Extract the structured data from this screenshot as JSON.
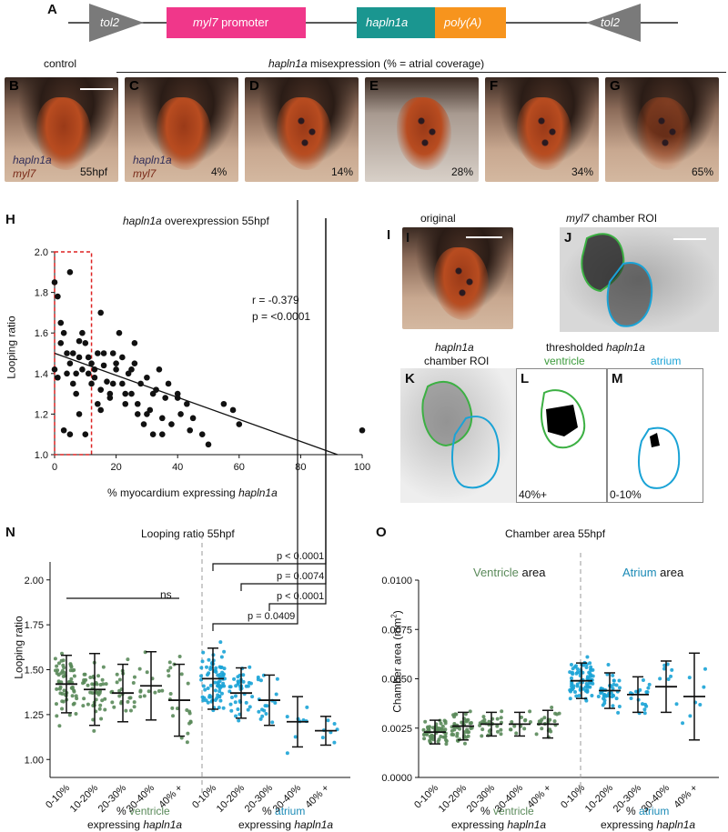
{
  "panels": {
    "A": "A",
    "B": "B",
    "C": "C",
    "D": "D",
    "E": "E",
    "F": "F",
    "G": "G",
    "H": "H",
    "I": "I",
    "J": "J",
    "K": "K",
    "L": "L",
    "M": "M",
    "N": "N",
    "O": "O"
  },
  "construct": {
    "tol2_left": "tol2",
    "promoter": "myl7",
    "promoter_suffix": " promoter",
    "gene": "hapln1a",
    "polya": "poly(A)",
    "tol2_right": "tol2"
  },
  "row1": {
    "control": "control",
    "misexp_gene": "hapln1a",
    "misexp_rest": " misexpression (% = atrial coverage)",
    "stain1": "hapln1a",
    "stain2": "myl7",
    "labels": [
      "55hpf",
      "4%",
      "14%",
      "28%",
      "34%",
      "65%"
    ]
  },
  "panelH": {
    "title_gene": "hapln1a",
    "title_rest": " overexpression 55hpf",
    "r": "r = -0.379",
    "p": "p = <0.0001",
    "ylabel": "Looping ratio",
    "xlabel_pre": "% myocardium expressing ",
    "xlabel_gene": "hapln1a",
    "yticks": [
      "1.0",
      "1.2",
      "1.4",
      "1.6",
      "1.8",
      "2.0"
    ],
    "xticks": [
      "0",
      "20",
      "40",
      "60",
      "80",
      "100"
    ]
  },
  "panelIJ": {
    "original": "original",
    "myl7": "myl7",
    "chamber_roi": " chamber ROI",
    "hapln1a": "hapln1a",
    "chamber_roi2": "chamber ROI",
    "thresholded": "thresholded ",
    "ventricle": "ventricle",
    "atrium": "atrium",
    "l_label": "40%+",
    "m_label": "0-10%"
  },
  "panelN": {
    "title": "Looping ratio 55hpf",
    "ylabel": "Looping ratio",
    "yticks": [
      "1.00",
      "1.25",
      "1.50",
      "1.75",
      "2.00"
    ],
    "ns": "ns",
    "pvals": [
      "p < 0.0001",
      "p = 0.0074",
      "p < 0.0001",
      "p = 0.0409"
    ],
    "cats": [
      "0-10%",
      "10-20%",
      "20-30%",
      "30-40%",
      "40% +"
    ],
    "xl1_pre": "% ",
    "xl1_v": "ventricle",
    "xl1_a": "atrium",
    "xl2_pre": "expressing ",
    "xl2_gene": "hapln1a"
  },
  "panelO": {
    "title": "Chamber area 55hpf",
    "ylabel": "Chamber area (mm",
    "ylabel_sup": "2",
    "ylabel_end": ")",
    "yticks": [
      "0.0000",
      "0.0025",
      "0.0050",
      "0.0075",
      "0.0100"
    ],
    "v_area": "Ventricle",
    "a_area": "Atrium",
    "area": " area"
  },
  "chart_data": [
    {
      "type": "scatter",
      "title": "hapln1a overexpression 55hpf",
      "xlabel": "% myocardium expressing hapln1a",
      "ylabel": "Looping ratio",
      "xlim": [
        0,
        100
      ],
      "ylim": [
        1.0,
        2.0
      ],
      "r": -0.379,
      "fit": {
        "x": [
          0,
          92
        ],
        "y": [
          1.5,
          1.0
        ]
      },
      "points_x": [
        0,
        0,
        1,
        2,
        3,
        4,
        5,
        5,
        6,
        7,
        8,
        8,
        9,
        10,
        10,
        11,
        12,
        13,
        14,
        15,
        15,
        16,
        17,
        18,
        19,
        20,
        21,
        22,
        23,
        24,
        25,
        26,
        27,
        28,
        30,
        31,
        32,
        34,
        35,
        36,
        38,
        40,
        41,
        43,
        45,
        48,
        50,
        55,
        58,
        60,
        100,
        2,
        4,
        6,
        9,
        12,
        14,
        16,
        20,
        23,
        26,
        30,
        35,
        40,
        3,
        7,
        11,
        15,
        19,
        25,
        29,
        33,
        1,
        5,
        8,
        13,
        18,
        22,
        27,
        32,
        37,
        44
      ],
      "points_y": [
        1.85,
        1.42,
        1.78,
        1.55,
        1.6,
        1.5,
        1.45,
        1.9,
        1.35,
        1.3,
        1.48,
        1.2,
        1.42,
        1.55,
        1.1,
        1.4,
        1.45,
        1.38,
        1.5,
        1.32,
        1.7,
        1.44,
        1.36,
        1.28,
        1.5,
        1.42,
        1.6,
        1.35,
        1.25,
        1.4,
        1.3,
        1.45,
        1.2,
        1.35,
        1.38,
        1.22,
        1.3,
        1.42,
        1.1,
        1.28,
        1.15,
        1.3,
        1.2,
        1.25,
        1.18,
        1.1,
        1.05,
        1.25,
        1.22,
        1.15,
        1.12,
        1.65,
        1.4,
        1.5,
        1.6,
        1.35,
        1.25,
        1.5,
        1.45,
        1.3,
        1.55,
        1.2,
        1.18,
        1.28,
        1.12,
        1.4,
        1.48,
        1.22,
        1.35,
        1.42,
        1.15,
        1.32,
        1.38,
        1.1,
        1.56,
        1.42,
        1.3,
        1.48,
        1.25,
        1.1,
        1.35,
        1.12
      ]
    },
    {
      "type": "scatter",
      "title": "Looping ratio 55hpf",
      "ylabel": "Looping ratio",
      "ylim": [
        0.9,
        2.1
      ],
      "groups": [
        {
          "name": "ventricle",
          "cat": "0-10%",
          "mean": 1.42,
          "sd": 0.16,
          "n": 60
        },
        {
          "name": "ventricle",
          "cat": "10-20%",
          "mean": 1.39,
          "sd": 0.2,
          "n": 45
        },
        {
          "name": "ventricle",
          "cat": "20-30%",
          "mean": 1.37,
          "sd": 0.16,
          "n": 25
        },
        {
          "name": "ventricle",
          "cat": "30-40%",
          "mean": 1.41,
          "sd": 0.19,
          "n": 12
        },
        {
          "name": "ventricle",
          "cat": "40% +",
          "mean": 1.33,
          "sd": 0.2,
          "n": 22
        },
        {
          "name": "atrium",
          "cat": "0-10%",
          "mean": 1.45,
          "sd": 0.17,
          "n": 75
        },
        {
          "name": "atrium",
          "cat": "10-20%",
          "mean": 1.37,
          "sd": 0.14,
          "n": 40
        },
        {
          "name": "atrium",
          "cat": "20-30%",
          "mean": 1.33,
          "sd": 0.14,
          "n": 18
        },
        {
          "name": "atrium",
          "cat": "30-40%",
          "mean": 1.21,
          "sd": 0.14,
          "n": 8
        },
        {
          "name": "atrium",
          "cat": "40% +",
          "mean": 1.16,
          "sd": 0.08,
          "n": 7
        }
      ]
    },
    {
      "type": "scatter",
      "title": "Chamber area 55hpf",
      "ylabel": "Chamber area (mm2)",
      "ylim": [
        0,
        0.01
      ],
      "groups": [
        {
          "name": "ventricle",
          "cat": "0-10%",
          "mean": 0.0023,
          "sd": 0.0006,
          "n": 60
        },
        {
          "name": "ventricle",
          "cat": "10-20%",
          "mean": 0.0026,
          "sd": 0.0007,
          "n": 45
        },
        {
          "name": "ventricle",
          "cat": "20-30%",
          "mean": 0.0027,
          "sd": 0.0006,
          "n": 25
        },
        {
          "name": "ventricle",
          "cat": "30-40%",
          "mean": 0.0027,
          "sd": 0.0006,
          "n": 12
        },
        {
          "name": "ventricle",
          "cat": "40% +",
          "mean": 0.0027,
          "sd": 0.0007,
          "n": 22
        },
        {
          "name": "atrium",
          "cat": "0-10%",
          "mean": 0.0049,
          "sd": 0.0009,
          "n": 75
        },
        {
          "name": "atrium",
          "cat": "10-20%",
          "mean": 0.0044,
          "sd": 0.0009,
          "n": 40
        },
        {
          "name": "atrium",
          "cat": "20-30%",
          "mean": 0.0042,
          "sd": 0.0009,
          "n": 18
        },
        {
          "name": "atrium",
          "cat": "30-40%",
          "mean": 0.0046,
          "sd": 0.0013,
          "n": 8
        },
        {
          "name": "atrium",
          "cat": "40% +",
          "mean": 0.0041,
          "sd": 0.0022,
          "n": 7
        }
      ]
    }
  ],
  "colors": {
    "pink": "#f0378a",
    "teal": "#1a9690",
    "orange": "#f7941d",
    "arrow": "#7a7a7a",
    "green": "#5a8a5a",
    "blue": "#1aa3d6",
    "red": "#d22"
  }
}
